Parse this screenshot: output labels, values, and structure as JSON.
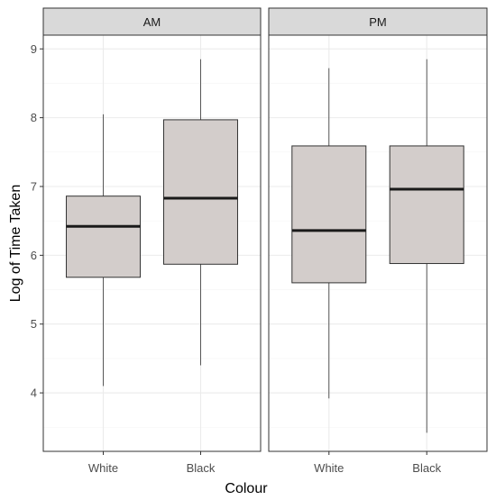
{
  "chart_data": {
    "type": "boxplot",
    "xlabel": "Colour",
    "ylabel": "Log of Time Taken",
    "categories": [
      "White",
      "Black"
    ],
    "ylim": [
      3.15,
      9.2
    ],
    "yticks": [
      "4",
      "5",
      "6",
      "7",
      "8",
      "9"
    ],
    "grid": true,
    "facets": [
      {
        "label": "AM",
        "boxes": [
          {
            "category": "White",
            "min": 4.1,
            "q1": 5.68,
            "median": 6.42,
            "q3": 6.86,
            "max": 8.05
          },
          {
            "category": "Black",
            "min": 4.4,
            "q1": 5.87,
            "median": 6.83,
            "q3": 7.97,
            "max": 8.85
          }
        ]
      },
      {
        "label": "PM",
        "boxes": [
          {
            "category": "White",
            "min": 3.92,
            "q1": 5.6,
            "median": 6.36,
            "q3": 7.59,
            "max": 8.72
          },
          {
            "category": "Black",
            "min": 3.42,
            "q1": 5.88,
            "median": 6.96,
            "q3": 7.59,
            "max": 8.85
          }
        ]
      }
    ],
    "colors": {
      "box_fill": "#d3cdcb",
      "box_stroke": "#333333",
      "median": "#1a1a1a",
      "strip_fill": "#d9d9d9",
      "grid_major": "#ebebeb",
      "grid_minor": "#f5f5f5",
      "panel_border": "#333333"
    }
  }
}
